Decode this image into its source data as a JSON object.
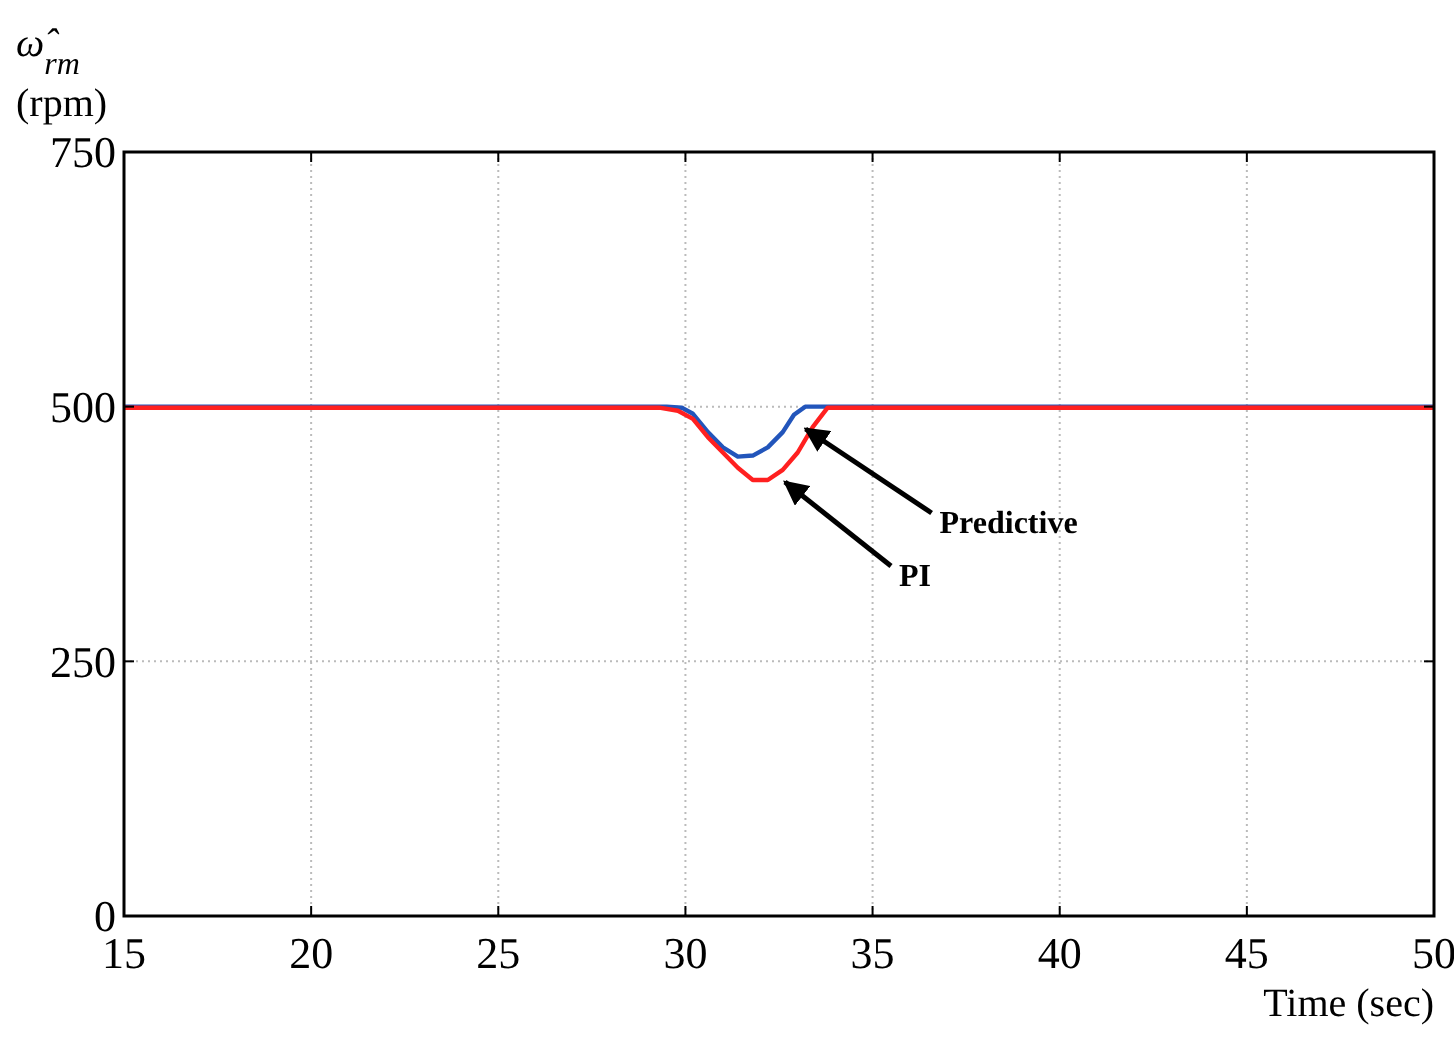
{
  "chart_data": {
    "type": "line",
    "xlabel": "Time (sec)",
    "ylabel": "ω̂$_{rm}$ (rpm)",
    "xlim": [
      15,
      50
    ],
    "xticks": [
      15,
      20,
      25,
      30,
      35,
      40,
      45,
      50
    ],
    "ylim": [
      0,
      750
    ],
    "yticks": [
      0,
      250,
      500,
      750
    ],
    "grid": true,
    "line_style": "solid",
    "series": [
      {
        "color": "#2255bb",
        "x": [
          15,
          29.5,
          29.9,
          30.2,
          30.6,
          31,
          31.4,
          31.8,
          32.2,
          32.6,
          32.9,
          33.2,
          50
        ],
        "values": [
          500,
          500,
          499,
          493,
          475,
          460,
          451,
          452,
          460,
          475,
          492,
          500,
          500
        ]
      },
      {
        "color": "#ff2020",
        "x": [
          15,
          29.3,
          29.8,
          30.2,
          30.6,
          31,
          31.4,
          31.8,
          32.2,
          32.6,
          33,
          33.4,
          33.8,
          50
        ],
        "values": [
          499,
          499,
          496,
          488,
          470,
          455,
          440,
          428,
          428,
          438,
          455,
          480,
          499,
          499
        ]
      }
    ],
    "annotations": [
      {
        "text": "Predictive",
        "x": 33.05,
        "y": 484
      },
      {
        "text": "PI",
        "x": 32.5,
        "y": 432
      }
    ]
  }
}
